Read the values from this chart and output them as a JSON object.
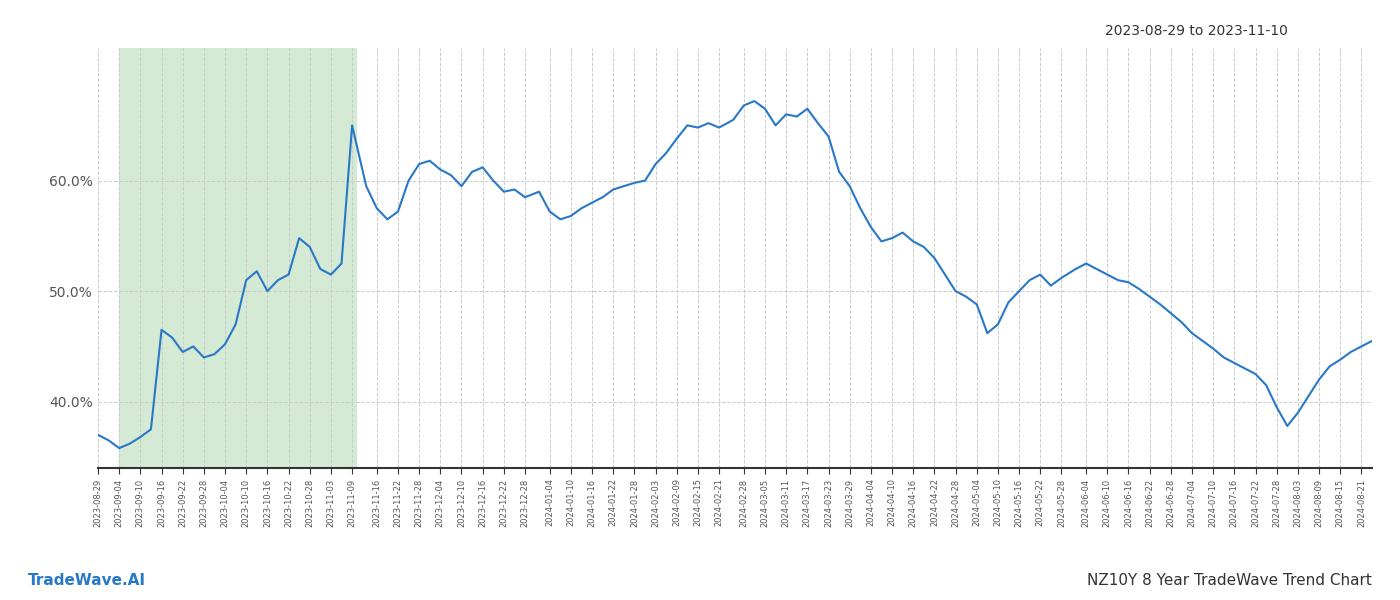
{
  "title_date_range": "2023-08-29 to 2023-11-10",
  "title_chart": "NZ10Y 8 Year TradeWave Trend Chart",
  "footer_left": "TradeWave.AI",
  "line_color": "#2878c8",
  "line_width": 1.5,
  "shade_start": "2023-09-04",
  "shade_end": "2023-11-10",
  "shade_color": "#d5ead5",
  "background_color": "#ffffff",
  "grid_color": "#cccccc",
  "ytick_labels": [
    "40.0%",
    "50.0%",
    "60.0%"
  ],
  "ytick_values": [
    0.4,
    0.5,
    0.6
  ],
  "ylim": [
    0.34,
    0.72
  ],
  "dates": [
    "2023-08-29",
    "2023-09-01",
    "2023-09-04",
    "2023-09-07",
    "2023-09-10",
    "2023-09-13",
    "2023-09-16",
    "2023-09-19",
    "2023-09-22",
    "2023-09-25",
    "2023-09-28",
    "2023-10-01",
    "2023-10-04",
    "2023-10-07",
    "2023-10-10",
    "2023-10-13",
    "2023-10-16",
    "2023-10-19",
    "2023-10-22",
    "2023-10-25",
    "2023-10-28",
    "2023-10-31",
    "2023-11-03",
    "2023-11-06",
    "2023-11-09",
    "2023-11-13",
    "2023-11-16",
    "2023-11-19",
    "2023-11-22",
    "2023-11-25",
    "2023-11-28",
    "2023-12-01",
    "2023-12-04",
    "2023-12-07",
    "2023-12-10",
    "2023-12-13",
    "2023-12-16",
    "2023-12-19",
    "2023-12-22",
    "2023-12-25",
    "2023-12-28",
    "2024-01-01",
    "2024-01-04",
    "2024-01-07",
    "2024-01-10",
    "2024-01-13",
    "2024-01-16",
    "2024-01-19",
    "2024-01-22",
    "2024-01-25",
    "2024-01-28",
    "2024-01-31",
    "2024-02-03",
    "2024-02-06",
    "2024-02-09",
    "2024-02-12",
    "2024-02-15",
    "2024-02-18",
    "2024-02-21",
    "2024-02-25",
    "2024-02-28",
    "2024-03-02",
    "2024-03-05",
    "2024-03-08",
    "2024-03-11",
    "2024-03-14",
    "2024-03-17",
    "2024-03-20",
    "2024-03-23",
    "2024-03-26",
    "2024-03-29",
    "2024-04-01",
    "2024-04-04",
    "2024-04-07",
    "2024-04-10",
    "2024-04-13",
    "2024-04-16",
    "2024-04-19",
    "2024-04-22",
    "2024-04-25",
    "2024-04-28",
    "2024-05-01",
    "2024-05-04",
    "2024-05-07",
    "2024-05-10",
    "2024-05-13",
    "2024-05-16",
    "2024-05-19",
    "2024-05-22",
    "2024-05-25",
    "2024-05-28",
    "2024-06-01",
    "2024-06-04",
    "2024-06-07",
    "2024-06-10",
    "2024-06-13",
    "2024-06-16",
    "2024-06-19",
    "2024-06-22",
    "2024-06-25",
    "2024-06-28",
    "2024-07-01",
    "2024-07-04",
    "2024-07-07",
    "2024-07-10",
    "2024-07-13",
    "2024-07-16",
    "2024-07-19",
    "2024-07-22",
    "2024-07-25",
    "2024-07-28",
    "2024-07-31",
    "2024-08-03",
    "2024-08-06",
    "2024-08-09",
    "2024-08-12",
    "2024-08-15",
    "2024-08-18",
    "2024-08-21",
    "2024-08-24"
  ],
  "values": [
    0.37,
    0.365,
    0.358,
    0.362,
    0.368,
    0.375,
    0.465,
    0.458,
    0.445,
    0.45,
    0.44,
    0.443,
    0.452,
    0.47,
    0.51,
    0.518,
    0.5,
    0.51,
    0.515,
    0.548,
    0.54,
    0.52,
    0.515,
    0.525,
    0.65,
    0.595,
    0.575,
    0.565,
    0.572,
    0.6,
    0.615,
    0.618,
    0.61,
    0.605,
    0.595,
    0.608,
    0.612,
    0.6,
    0.59,
    0.592,
    0.585,
    0.59,
    0.572,
    0.565,
    0.568,
    0.575,
    0.58,
    0.585,
    0.592,
    0.595,
    0.598,
    0.6,
    0.615,
    0.625,
    0.638,
    0.65,
    0.648,
    0.652,
    0.648,
    0.655,
    0.668,
    0.672,
    0.665,
    0.65,
    0.66,
    0.658,
    0.665,
    0.652,
    0.64,
    0.608,
    0.595,
    0.575,
    0.558,
    0.545,
    0.548,
    0.553,
    0.545,
    0.54,
    0.53,
    0.515,
    0.5,
    0.495,
    0.488,
    0.462,
    0.47,
    0.49,
    0.5,
    0.51,
    0.515,
    0.505,
    0.512,
    0.52,
    0.525,
    0.52,
    0.515,
    0.51,
    0.508,
    0.502,
    0.495,
    0.488,
    0.48,
    0.472,
    0.462,
    0.455,
    0.448,
    0.44,
    0.435,
    0.43,
    0.425,
    0.415,
    0.395,
    0.378,
    0.39,
    0.405,
    0.42,
    0.432,
    0.438,
    0.445,
    0.45,
    0.455
  ]
}
